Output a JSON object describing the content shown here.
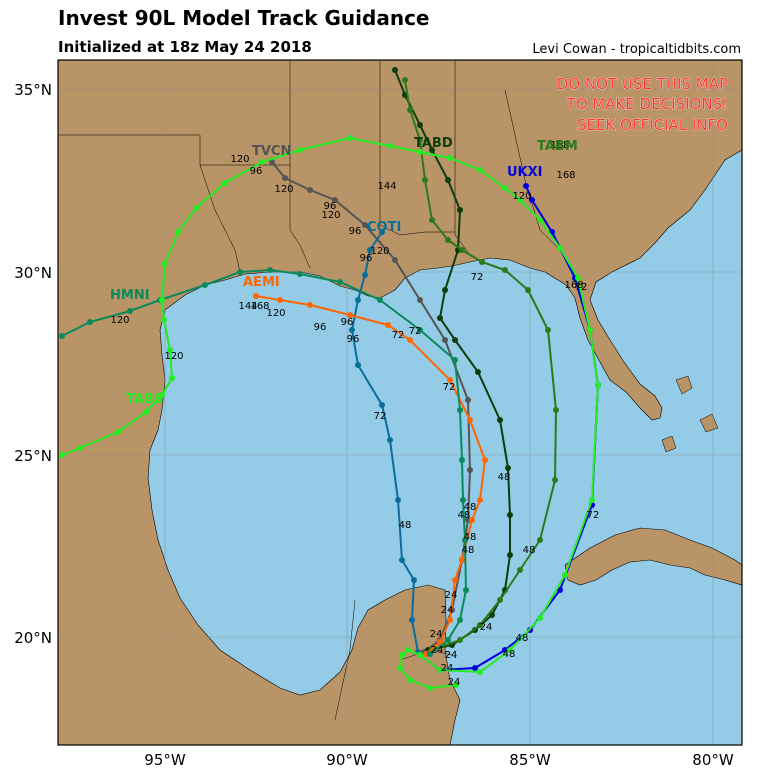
{
  "title": "Invest 90L Model Track Guidance",
  "subtitle": "Initialized at 18z May 24 2018",
  "credit": "Levi Cowan - tropicaltidbits.com",
  "warning": [
    "DO NOT USE THIS MAP",
    "TO MAKE DECISIONS!",
    "SEEK OFFICIAL INFO"
  ],
  "axes": {
    "lon_ticks": [
      "95°W",
      "90°W",
      "85°W",
      "80°W"
    ],
    "lat_ticks": [
      "35°N",
      "30°N",
      "25°N",
      "20°N"
    ]
  },
  "colors": {
    "ocean": "#94cbe6",
    "land": "#b99466",
    "warning": "#ff3333"
  },
  "models": [
    {
      "name": "TVCN",
      "color": "#555555"
    },
    {
      "name": "TABD",
      "color": "#0a3d0a"
    },
    {
      "name": "TABM",
      "color": "#2a7a1a"
    },
    {
      "name": "UKXI",
      "color": "#0000dd"
    },
    {
      "name": "COTI",
      "color": "#0a6e9c"
    },
    {
      "name": "AEMI",
      "color": "#ff6600"
    },
    {
      "name": "HMNI",
      "color": "#0a8a5a"
    },
    {
      "name": "TABS",
      "color": "#22ee22"
    }
  ],
  "hour_labels": [
    "24",
    "24",
    "24",
    "24",
    "24",
    "24",
    "24",
    "24",
    "48",
    "48",
    "48",
    "48",
    "48",
    "48",
    "48",
    "48",
    "48",
    "72",
    "72",
    "72",
    "72",
    "72",
    "72",
    "72",
    "96",
    "96",
    "96",
    "96",
    "96",
    "96",
    "96",
    "120",
    "120",
    "120",
    "120",
    "120",
    "120",
    "120",
    "120",
    "144",
    "144",
    "168",
    "168",
    "168",
    "168"
  ]
}
